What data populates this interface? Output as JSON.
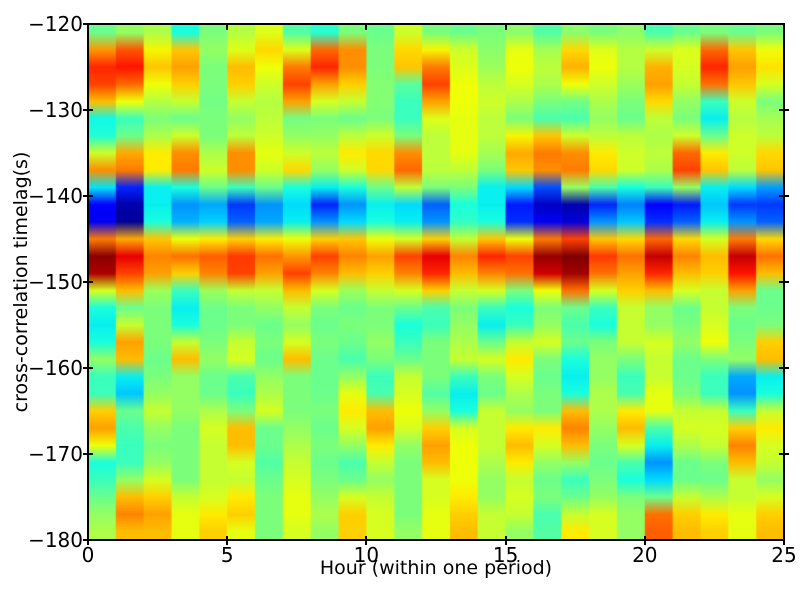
{
  "figure": {
    "background": "#ffffff"
  },
  "chart_data": {
    "type": "heatmap",
    "xlabel": "Hour (within one period)",
    "ylabel": "cross-correlation timelag(s)",
    "xlim": [
      0,
      25
    ],
    "ylim": [
      -180,
      -120
    ],
    "x_ticks": [
      0,
      5,
      10,
      15,
      20,
      25
    ],
    "x_tick_labels": [
      "0",
      "5",
      "10",
      "15",
      "20",
      "25"
    ],
    "x_minor_ticks_top": [
      5,
      10,
      15,
      20
    ],
    "y_ticks": [
      -120,
      -130,
      -140,
      -150,
      -160,
      -170,
      -180
    ],
    "y_tick_labels": [
      "−120",
      "−130",
      "−140",
      "−150",
      "−160",
      "−170",
      "−180"
    ],
    "y_ticks_right": [
      -130,
      -140,
      -150,
      -160,
      -170
    ],
    "colormap": "jet",
    "grid": {
      "columns_hours": {
        "start": 0.5,
        "step": 1,
        "count": 25
      },
      "rows_timelag": {
        "start": -121,
        "step": -2,
        "count": 30
      }
    },
    "values_norm": [
      [
        0.48,
        0.53,
        0.56,
        0.38,
        0.5,
        0.57,
        0.62,
        0.45,
        0.4,
        0.5,
        0.48,
        0.6,
        0.5,
        0.48,
        0.5,
        0.52,
        0.45,
        0.52,
        0.5,
        0.52,
        0.44,
        0.48,
        0.5,
        0.48,
        0.5
      ],
      [
        0.75,
        0.82,
        0.65,
        0.7,
        0.53,
        0.62,
        0.68,
        0.62,
        0.8,
        0.76,
        0.5,
        0.68,
        0.65,
        0.6,
        0.52,
        0.63,
        0.55,
        0.68,
        0.62,
        0.57,
        0.6,
        0.62,
        0.8,
        0.7,
        0.64
      ],
      [
        0.87,
        0.89,
        0.7,
        0.74,
        0.5,
        0.71,
        0.64,
        0.78,
        0.87,
        0.76,
        0.5,
        0.7,
        0.78,
        0.62,
        0.54,
        0.64,
        0.58,
        0.72,
        0.64,
        0.57,
        0.72,
        0.61,
        0.87,
        0.74,
        0.67
      ],
      [
        0.84,
        0.8,
        0.64,
        0.69,
        0.5,
        0.69,
        0.6,
        0.84,
        0.74,
        0.69,
        0.51,
        0.46,
        0.84,
        0.64,
        0.58,
        0.61,
        0.56,
        0.64,
        0.6,
        0.54,
        0.74,
        0.59,
        0.79,
        0.7,
        0.61
      ],
      [
        0.71,
        0.64,
        0.57,
        0.59,
        0.49,
        0.59,
        0.57,
        0.74,
        0.61,
        0.59,
        0.51,
        0.42,
        0.74,
        0.64,
        0.6,
        0.56,
        0.5,
        0.49,
        0.56,
        0.5,
        0.68,
        0.53,
        0.42,
        0.6,
        0.5
      ],
      [
        0.37,
        0.42,
        0.5,
        0.48,
        0.5,
        0.53,
        0.58,
        0.49,
        0.5,
        0.48,
        0.5,
        0.42,
        0.62,
        0.63,
        0.58,
        0.5,
        0.44,
        0.44,
        0.53,
        0.48,
        0.58,
        0.5,
        0.36,
        0.57,
        0.55
      ],
      [
        0.39,
        0.48,
        0.56,
        0.6,
        0.5,
        0.58,
        0.6,
        0.53,
        0.53,
        0.58,
        0.6,
        0.5,
        0.58,
        0.63,
        0.58,
        0.65,
        0.7,
        0.6,
        0.58,
        0.58,
        0.56,
        0.6,
        0.48,
        0.6,
        0.58
      ],
      [
        0.6,
        0.73,
        0.66,
        0.76,
        0.56,
        0.76,
        0.63,
        0.6,
        0.58,
        0.66,
        0.68,
        0.76,
        0.58,
        0.63,
        0.55,
        0.73,
        0.78,
        0.76,
        0.66,
        0.6,
        0.58,
        0.8,
        0.66,
        0.6,
        0.68
      ],
      [
        0.76,
        0.78,
        0.66,
        0.78,
        0.6,
        0.76,
        0.6,
        0.68,
        0.53,
        0.6,
        0.68,
        0.8,
        0.58,
        0.58,
        0.5,
        0.7,
        0.76,
        0.78,
        0.68,
        0.6,
        0.56,
        0.84,
        0.7,
        0.58,
        0.7
      ],
      [
        0.35,
        0.16,
        0.36,
        0.38,
        0.48,
        0.42,
        0.48,
        0.38,
        0.36,
        0.38,
        0.48,
        0.58,
        0.5,
        0.5,
        0.36,
        0.34,
        0.2,
        0.53,
        0.44,
        0.38,
        0.42,
        0.53,
        0.36,
        0.34,
        0.28
      ],
      [
        0.12,
        0.04,
        0.36,
        0.27,
        0.29,
        0.18,
        0.27,
        0.34,
        0.16,
        0.27,
        0.36,
        0.34,
        0.22,
        0.38,
        0.36,
        0.15,
        0.06,
        0.04,
        0.16,
        0.25,
        0.12,
        0.15,
        0.32,
        0.18,
        0.18
      ],
      [
        0.1,
        0.02,
        0.38,
        0.3,
        0.33,
        0.22,
        0.29,
        0.36,
        0.27,
        0.34,
        0.38,
        0.36,
        0.27,
        0.41,
        0.38,
        0.17,
        0.1,
        0.08,
        0.27,
        0.32,
        0.17,
        0.22,
        0.36,
        0.27,
        0.22
      ],
      [
        0.78,
        0.73,
        0.7,
        0.64,
        0.66,
        0.69,
        0.66,
        0.64,
        0.69,
        0.7,
        0.64,
        0.61,
        0.69,
        0.59,
        0.7,
        0.64,
        0.78,
        0.84,
        0.7,
        0.68,
        0.8,
        0.68,
        0.61,
        0.78,
        0.68
      ],
      [
        0.99,
        0.91,
        0.77,
        0.79,
        0.81,
        0.85,
        0.79,
        0.75,
        0.84,
        0.77,
        0.74,
        0.84,
        0.91,
        0.77,
        0.87,
        0.84,
        0.98,
        1.0,
        0.85,
        0.79,
        0.94,
        0.77,
        0.71,
        0.94,
        0.79
      ],
      [
        0.96,
        0.84,
        0.74,
        0.69,
        0.77,
        0.84,
        0.74,
        0.84,
        0.77,
        0.71,
        0.69,
        0.77,
        0.87,
        0.71,
        0.77,
        0.79,
        0.93,
        0.97,
        0.79,
        0.74,
        0.87,
        0.71,
        0.69,
        0.89,
        0.71
      ],
      [
        0.61,
        0.71,
        0.54,
        0.42,
        0.54,
        0.59,
        0.59,
        0.71,
        0.61,
        0.54,
        0.59,
        0.61,
        0.69,
        0.59,
        0.61,
        0.5,
        0.64,
        0.79,
        0.61,
        0.69,
        0.71,
        0.61,
        0.59,
        0.74,
        0.48
      ],
      [
        0.38,
        0.48,
        0.5,
        0.36,
        0.48,
        0.5,
        0.53,
        0.59,
        0.5,
        0.48,
        0.5,
        0.48,
        0.44,
        0.5,
        0.42,
        0.38,
        0.5,
        0.48,
        0.42,
        0.59,
        0.53,
        0.48,
        0.59,
        0.5,
        0.48
      ],
      [
        0.36,
        0.59,
        0.5,
        0.38,
        0.48,
        0.5,
        0.48,
        0.53,
        0.48,
        0.5,
        0.5,
        0.38,
        0.42,
        0.53,
        0.36,
        0.42,
        0.53,
        0.44,
        0.38,
        0.59,
        0.53,
        0.5,
        0.61,
        0.48,
        0.5
      ],
      [
        0.38,
        0.74,
        0.5,
        0.59,
        0.5,
        0.59,
        0.5,
        0.61,
        0.5,
        0.48,
        0.53,
        0.42,
        0.5,
        0.56,
        0.48,
        0.59,
        0.61,
        0.48,
        0.5,
        0.59,
        0.61,
        0.53,
        0.64,
        0.5,
        0.69
      ],
      [
        0.53,
        0.71,
        0.48,
        0.71,
        0.53,
        0.61,
        0.48,
        0.71,
        0.48,
        0.44,
        0.5,
        0.48,
        0.5,
        0.59,
        0.61,
        0.66,
        0.5,
        0.38,
        0.53,
        0.5,
        0.59,
        0.48,
        0.5,
        0.53,
        0.71
      ],
      [
        0.42,
        0.36,
        0.5,
        0.53,
        0.48,
        0.44,
        0.53,
        0.5,
        0.48,
        0.53,
        0.42,
        0.59,
        0.5,
        0.42,
        0.5,
        0.61,
        0.48,
        0.36,
        0.53,
        0.42,
        0.59,
        0.48,
        0.42,
        0.29,
        0.36
      ],
      [
        0.42,
        0.32,
        0.53,
        0.53,
        0.48,
        0.42,
        0.56,
        0.5,
        0.48,
        0.63,
        0.44,
        0.61,
        0.45,
        0.36,
        0.48,
        0.56,
        0.5,
        0.38,
        0.56,
        0.44,
        0.63,
        0.5,
        0.42,
        0.27,
        0.38
      ],
      [
        0.69,
        0.48,
        0.59,
        0.53,
        0.56,
        0.5,
        0.61,
        0.5,
        0.5,
        0.66,
        0.71,
        0.64,
        0.53,
        0.38,
        0.59,
        0.53,
        0.5,
        0.71,
        0.56,
        0.66,
        0.63,
        0.59,
        0.59,
        0.42,
        0.59
      ],
      [
        0.74,
        0.44,
        0.53,
        0.5,
        0.61,
        0.71,
        0.48,
        0.53,
        0.48,
        0.61,
        0.74,
        0.61,
        0.69,
        0.61,
        0.59,
        0.66,
        0.66,
        0.77,
        0.53,
        0.71,
        0.44,
        0.61,
        0.61,
        0.69,
        0.66
      ],
      [
        0.64,
        0.42,
        0.5,
        0.5,
        0.59,
        0.71,
        0.48,
        0.56,
        0.5,
        0.53,
        0.66,
        0.53,
        0.74,
        0.64,
        0.59,
        0.71,
        0.61,
        0.71,
        0.5,
        0.61,
        0.36,
        0.56,
        0.59,
        0.77,
        0.61
      ],
      [
        0.38,
        0.42,
        0.53,
        0.5,
        0.59,
        0.61,
        0.45,
        0.59,
        0.48,
        0.44,
        0.59,
        0.5,
        0.71,
        0.64,
        0.56,
        0.66,
        0.53,
        0.53,
        0.48,
        0.44,
        0.27,
        0.48,
        0.5,
        0.71,
        0.59
      ],
      [
        0.42,
        0.53,
        0.61,
        0.5,
        0.59,
        0.59,
        0.48,
        0.61,
        0.5,
        0.48,
        0.53,
        0.5,
        0.61,
        0.64,
        0.53,
        0.59,
        0.48,
        0.42,
        0.5,
        0.38,
        0.34,
        0.48,
        0.48,
        0.59,
        0.53
      ],
      [
        0.48,
        0.71,
        0.69,
        0.59,
        0.61,
        0.66,
        0.5,
        0.63,
        0.53,
        0.61,
        0.59,
        0.5,
        0.61,
        0.66,
        0.53,
        0.61,
        0.5,
        0.48,
        0.53,
        0.5,
        0.48,
        0.59,
        0.56,
        0.59,
        0.61
      ],
      [
        0.53,
        0.77,
        0.74,
        0.63,
        0.66,
        0.69,
        0.5,
        0.63,
        0.56,
        0.69,
        0.61,
        0.5,
        0.63,
        0.69,
        0.59,
        0.59,
        0.44,
        0.59,
        0.61,
        0.53,
        0.79,
        0.69,
        0.66,
        0.63,
        0.69
      ],
      [
        0.56,
        0.71,
        0.71,
        0.63,
        0.69,
        0.63,
        0.5,
        0.61,
        0.53,
        0.69,
        0.61,
        0.53,
        0.63,
        0.71,
        0.59,
        0.53,
        0.45,
        0.66,
        0.61,
        0.53,
        0.81,
        0.71,
        0.69,
        0.63,
        0.71
      ]
    ]
  }
}
